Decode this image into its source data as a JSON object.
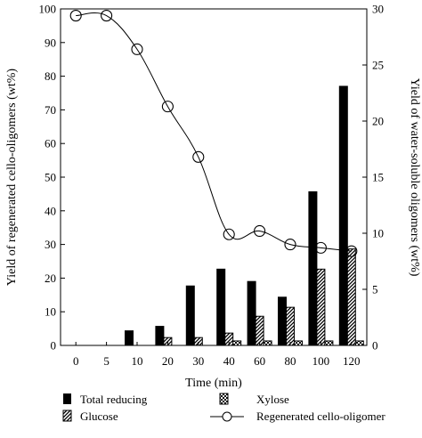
{
  "chart_data": {
    "type": "bar",
    "categories": [
      "0",
      "5",
      "10",
      "20",
      "30",
      "40",
      "60",
      "80",
      "100",
      "120"
    ],
    "xlabel": "Time (min)",
    "ylabel_left": "Yield of regenerated cello-oligomers (wt%)",
    "ylabel_right": "Yield of water-soluble oligomers (wt%)",
    "ylim_left": [
      0,
      100
    ],
    "ylim_right": [
      0,
      30
    ],
    "yticks_left": [
      "0",
      "10",
      "20",
      "30",
      "40",
      "50",
      "60",
      "70",
      "80",
      "90",
      "100"
    ],
    "yticks_right": [
      "0",
      "5",
      "10",
      "15",
      "20",
      "25",
      "30"
    ],
    "grid": false,
    "legend_position": "bottom",
    "series": [
      {
        "name": "Total reducing",
        "kind": "bar",
        "axis": "right",
        "pattern": "solid",
        "values": [
          0,
          0,
          1.3,
          1.7,
          5.3,
          6.8,
          5.7,
          4.3,
          13.7,
          23.1
        ]
      },
      {
        "name": "Glucose",
        "kind": "bar",
        "axis": "right",
        "pattern": "hatch",
        "values": [
          0,
          0,
          0,
          0.7,
          0.7,
          1.1,
          2.6,
          3.4,
          6.8,
          8.6
        ]
      },
      {
        "name": "Xylose",
        "kind": "bar",
        "axis": "right",
        "pattern": "checker",
        "values": [
          0,
          0,
          0,
          0,
          0,
          0.4,
          0.4,
          0.4,
          0.4,
          0.4
        ]
      },
      {
        "name": "Regenerated cello-oligomer",
        "kind": "line",
        "marker": "open-circle",
        "axis": "left",
        "values": [
          98,
          98,
          88,
          71,
          56,
          33,
          34,
          30,
          29,
          28
        ]
      }
    ]
  }
}
